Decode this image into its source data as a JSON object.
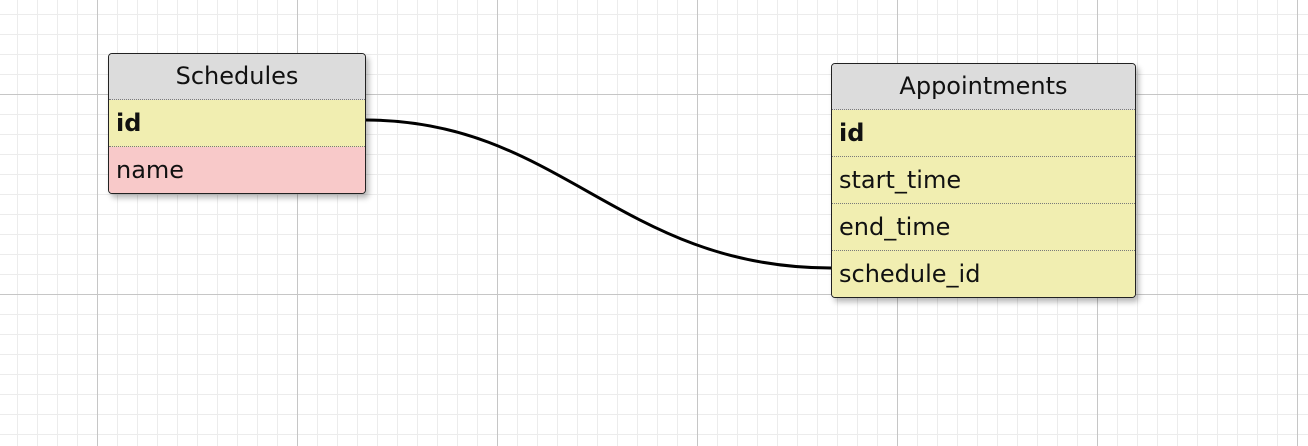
{
  "diagram": {
    "tables": [
      {
        "title": "Schedules",
        "fields": [
          {
            "name": "id",
            "primary": true,
            "color": "#f1eeb1"
          },
          {
            "name": "name",
            "primary": false,
            "color": "#f8c9c9"
          }
        ]
      },
      {
        "title": "Appointments",
        "fields": [
          {
            "name": "id",
            "primary": true,
            "color": "#f1eeb1"
          },
          {
            "name": "start_time",
            "primary": false,
            "color": "#f1eeb1"
          },
          {
            "name": "end_time",
            "primary": false,
            "color": "#f1eeb1"
          },
          {
            "name": "schedule_id",
            "primary": false,
            "color": "#f1eeb1"
          }
        ]
      }
    ],
    "relations": [
      {
        "from_table": "Schedules",
        "from_field": "id",
        "to_table": "Appointments",
        "to_field": "schedule_id"
      }
    ],
    "colors": {
      "header": "#dcdcdc",
      "key_field": "#f1eeb1",
      "other_field": "#f8c9c9",
      "line": "#000000"
    }
  }
}
